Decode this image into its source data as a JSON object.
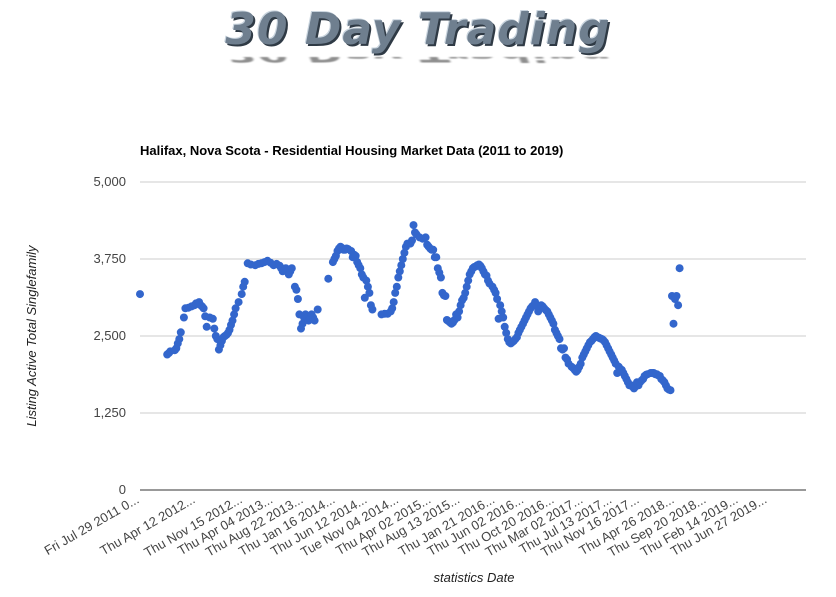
{
  "logo": {
    "text": "30 Day Trading"
  },
  "colors": {
    "point": "#3366cc",
    "grid": "#cccccc",
    "axis": "#333333"
  },
  "chart_data": {
    "type": "scatter",
    "title": "Halifax, Nova Scota - Residential Housing Market Data (2011 to 2019)",
    "xlabel": "statistics Date",
    "ylabel": "Listing Active Total Singlefamily",
    "ylim": [
      0,
      5000
    ],
    "y_ticks": [
      "0",
      "1,250",
      "2,500",
      "3,750",
      "5,000"
    ],
    "y_tick_values": [
      0,
      1250,
      2500,
      3750,
      5000
    ],
    "x_range": [
      "2011-07-29",
      "2019-12-20"
    ],
    "x_tick_labels": [
      {
        "date": "2011-07-29",
        "label": "Fri Jul 29 2011 0..."
      },
      {
        "date": "2012-04-12",
        "label": "Thu Apr 12 2012..."
      },
      {
        "date": "2012-11-15",
        "label": "Thu Nov 15 2012..."
      },
      {
        "date": "2013-04-04",
        "label": "Thu Apr 04 2013..."
      },
      {
        "date": "2013-08-22",
        "label": "Thu Aug 22 2013..."
      },
      {
        "date": "2014-01-16",
        "label": "Thu Jan 16 2014..."
      },
      {
        "date": "2014-06-12",
        "label": "Thu Jun 12 2014..."
      },
      {
        "date": "2014-11-04",
        "label": "Tue Nov 04 2014..."
      },
      {
        "date": "2015-04-02",
        "label": "Thu Apr 02 2015..."
      },
      {
        "date": "2015-08-13",
        "label": "Thu Aug 13 2015..."
      },
      {
        "date": "2016-01-21",
        "label": "Thu Jan 21 2016..."
      },
      {
        "date": "2016-06-02",
        "label": "Thu Jun 02 2016..."
      },
      {
        "date": "2016-10-20",
        "label": "Thu Oct 20 2016..."
      },
      {
        "date": "2017-03-02",
        "label": "Thu Mar 02 2017..."
      },
      {
        "date": "2017-07-13",
        "label": "Thu Jul 13 2017..."
      },
      {
        "date": "2017-11-16",
        "label": "Thu Nov 16 2017..."
      },
      {
        "date": "2018-04-26",
        "label": "Thu Apr 26 2018..."
      },
      {
        "date": "2018-09-20",
        "label": "Thu Sep 20 2018..."
      },
      {
        "date": "2019-02-14",
        "label": "Thu Feb 14 2019..."
      },
      {
        "date": "2019-06-27",
        "label": "Thu Jun 27 2019..."
      }
    ],
    "grid": true,
    "legend": "none",
    "points": [
      [
        "2011-07-29",
        3180
      ],
      [
        "2011-12-01",
        2200
      ],
      [
        "2011-12-08",
        2220
      ],
      [
        "2011-12-15",
        2250
      ],
      [
        "2012-01-05",
        2270
      ],
      [
        "2012-01-12",
        2300
      ],
      [
        "2012-01-19",
        2380
      ],
      [
        "2012-01-26",
        2450
      ],
      [
        "2012-02-02",
        2560
      ],
      [
        "2012-02-16",
        2800
      ],
      [
        "2012-02-23",
        2950
      ],
      [
        "2012-03-08",
        2960
      ],
      [
        "2012-03-22",
        2980
      ],
      [
        "2012-04-05",
        3000
      ],
      [
        "2012-04-12",
        3030
      ],
      [
        "2012-04-26",
        3050
      ],
      [
        "2012-05-03",
        3000
      ],
      [
        "2012-05-10",
        2980
      ],
      [
        "2012-05-17",
        2950
      ],
      [
        "2012-05-24",
        2820
      ],
      [
        "2012-05-31",
        2650
      ],
      [
        "2012-06-14",
        2800
      ],
      [
        "2012-06-28",
        2780
      ],
      [
        "2012-07-05",
        2620
      ],
      [
        "2012-07-12",
        2500
      ],
      [
        "2012-07-19",
        2450
      ],
      [
        "2012-07-26",
        2280
      ],
      [
        "2012-08-02",
        2350
      ],
      [
        "2012-08-09",
        2420
      ],
      [
        "2012-08-16",
        2480
      ],
      [
        "2012-08-23",
        2500
      ],
      [
        "2012-08-30",
        2520
      ],
      [
        "2012-09-06",
        2550
      ],
      [
        "2012-09-13",
        2600
      ],
      [
        "2012-09-20",
        2680
      ],
      [
        "2012-09-27",
        2750
      ],
      [
        "2012-10-04",
        2850
      ],
      [
        "2012-10-11",
        2950
      ],
      [
        "2012-10-25",
        3050
      ],
      [
        "2012-11-08",
        3180
      ],
      [
        "2012-11-15",
        3300
      ],
      [
        "2012-11-22",
        3380
      ],
      [
        "2012-12-06",
        3680
      ],
      [
        "2012-12-20",
        3660
      ],
      [
        "2013-01-10",
        3650
      ],
      [
        "2013-01-24",
        3670
      ],
      [
        "2013-02-07",
        3680
      ],
      [
        "2013-02-21",
        3700
      ],
      [
        "2013-03-07",
        3720
      ],
      [
        "2013-03-21",
        3690
      ],
      [
        "2013-04-04",
        3650
      ],
      [
        "2013-04-18",
        3670
      ],
      [
        "2013-05-02",
        3640
      ],
      [
        "2013-05-09",
        3600
      ],
      [
        "2013-05-16",
        3550
      ],
      [
        "2013-05-23",
        3560
      ],
      [
        "2013-05-30",
        3600
      ],
      [
        "2013-06-06",
        3550
      ],
      [
        "2013-06-13",
        3500
      ],
      [
        "2013-06-20",
        3550
      ],
      [
        "2013-06-27",
        3600
      ],
      [
        "2013-07-11",
        3300
      ],
      [
        "2013-07-18",
        3250
      ],
      [
        "2013-07-25",
        3100
      ],
      [
        "2013-08-01",
        2850
      ],
      [
        "2013-08-08",
        2620
      ],
      [
        "2013-08-15",
        2700
      ],
      [
        "2013-08-22",
        2800
      ],
      [
        "2013-08-29",
        2850
      ],
      [
        "2013-09-05",
        2800
      ],
      [
        "2013-09-12",
        2750
      ],
      [
        "2013-09-19",
        2780
      ],
      [
        "2013-09-26",
        2850
      ],
      [
        "2013-10-03",
        2800
      ],
      [
        "2013-10-10",
        2750
      ],
      [
        "2013-10-24",
        2930
      ],
      [
        "2013-12-12",
        3430
      ],
      [
        "2014-01-02",
        3700
      ],
      [
        "2014-01-09",
        3750
      ],
      [
        "2014-01-16",
        3800
      ],
      [
        "2014-01-23",
        3880
      ],
      [
        "2014-01-30",
        3920
      ],
      [
        "2014-02-06",
        3950
      ],
      [
        "2014-02-13",
        3930
      ],
      [
        "2014-02-20",
        3900
      ],
      [
        "2014-02-27",
        3900
      ],
      [
        "2014-03-06",
        3920
      ],
      [
        "2014-03-13",
        3910
      ],
      [
        "2014-03-27",
        3880
      ],
      [
        "2014-04-03",
        3780
      ],
      [
        "2014-04-10",
        3820
      ],
      [
        "2014-04-17",
        3800
      ],
      [
        "2014-04-24",
        3700
      ],
      [
        "2014-05-01",
        3650
      ],
      [
        "2014-05-08",
        3600
      ],
      [
        "2014-05-15",
        3500
      ],
      [
        "2014-05-22",
        3450
      ],
      [
        "2014-05-29",
        3120
      ],
      [
        "2014-06-05",
        3400
      ],
      [
        "2014-06-12",
        3300
      ],
      [
        "2014-06-19",
        3200
      ],
      [
        "2014-06-26",
        3000
      ],
      [
        "2014-07-03",
        2930
      ],
      [
        "2014-08-14",
        2850
      ],
      [
        "2014-08-28",
        2860
      ],
      [
        "2014-09-11",
        2860
      ],
      [
        "2014-09-25",
        2900
      ],
      [
        "2014-10-02",
        2950
      ],
      [
        "2014-10-09",
        3050
      ],
      [
        "2014-10-16",
        3200
      ],
      [
        "2014-10-23",
        3300
      ],
      [
        "2014-10-30",
        3450
      ],
      [
        "2014-11-06",
        3550
      ],
      [
        "2014-11-13",
        3650
      ],
      [
        "2014-11-20",
        3750
      ],
      [
        "2014-11-27",
        3850
      ],
      [
        "2014-12-04",
        3950
      ],
      [
        "2014-12-11",
        4000
      ],
      [
        "2014-12-25",
        4000
      ],
      [
        "2015-01-01",
        4050
      ],
      [
        "2015-01-08",
        4300
      ],
      [
        "2015-01-15",
        4180
      ],
      [
        "2015-01-22",
        4150
      ],
      [
        "2015-02-05",
        4100
      ],
      [
        "2015-02-19",
        4080
      ],
      [
        "2015-03-05",
        4100
      ],
      [
        "2015-03-12",
        3980
      ],
      [
        "2015-03-19",
        3950
      ],
      [
        "2015-03-26",
        3920
      ],
      [
        "2015-04-02",
        3900
      ],
      [
        "2015-04-09",
        3900
      ],
      [
        "2015-04-16",
        3780
      ],
      [
        "2015-04-23",
        3780
      ],
      [
        "2015-04-30",
        3600
      ],
      [
        "2015-05-07",
        3530
      ],
      [
        "2015-05-14",
        3450
      ],
      [
        "2015-05-21",
        3200
      ],
      [
        "2015-05-28",
        3160
      ],
      [
        "2015-06-04",
        3150
      ],
      [
        "2015-06-11",
        2760
      ],
      [
        "2015-06-18",
        2740
      ],
      [
        "2015-06-25",
        2720
      ],
      [
        "2015-07-02",
        2700
      ],
      [
        "2015-07-09",
        2720
      ],
      [
        "2015-07-16",
        2760
      ],
      [
        "2015-07-23",
        2850
      ],
      [
        "2015-07-30",
        2800
      ],
      [
        "2015-08-06",
        2900
      ],
      [
        "2015-08-13",
        3000
      ],
      [
        "2015-08-20",
        3080
      ],
      [
        "2015-08-27",
        3120
      ],
      [
        "2015-09-03",
        3200
      ],
      [
        "2015-09-10",
        3300
      ],
      [
        "2015-09-17",
        3400
      ],
      [
        "2015-09-24",
        3500
      ],
      [
        "2015-10-01",
        3550
      ],
      [
        "2015-10-08",
        3600
      ],
      [
        "2015-10-15",
        3620
      ],
      [
        "2015-10-22",
        3630
      ],
      [
        "2015-10-29",
        3650
      ],
      [
        "2015-11-05",
        3660
      ],
      [
        "2015-11-12",
        3640
      ],
      [
        "2015-11-19",
        3600
      ],
      [
        "2015-11-26",
        3550
      ],
      [
        "2015-12-03",
        3500
      ],
      [
        "2015-12-10",
        3480
      ],
      [
        "2015-12-17",
        3400
      ],
      [
        "2015-12-24",
        3350
      ],
      [
        "2016-01-07",
        3300
      ],
      [
        "2016-01-14",
        3250
      ],
      [
        "2016-01-21",
        3200
      ],
      [
        "2016-01-28",
        3100
      ],
      [
        "2016-02-04",
        2780
      ],
      [
        "2016-02-11",
        3000
      ],
      [
        "2016-02-18",
        2900
      ],
      [
        "2016-02-25",
        2800
      ],
      [
        "2016-03-03",
        2650
      ],
      [
        "2016-03-10",
        2550
      ],
      [
        "2016-03-17",
        2450
      ],
      [
        "2016-03-24",
        2400
      ],
      [
        "2016-03-31",
        2380
      ],
      [
        "2016-04-07",
        2400
      ],
      [
        "2016-04-14",
        2420
      ],
      [
        "2016-04-21",
        2450
      ],
      [
        "2016-04-28",
        2480
      ],
      [
        "2016-05-05",
        2550
      ],
      [
        "2016-05-12",
        2600
      ],
      [
        "2016-05-19",
        2650
      ],
      [
        "2016-05-26",
        2700
      ],
      [
        "2016-06-02",
        2750
      ],
      [
        "2016-06-09",
        2800
      ],
      [
        "2016-06-16",
        2850
      ],
      [
        "2016-06-23",
        2900
      ],
      [
        "2016-06-30",
        2950
      ],
      [
        "2016-07-07",
        2980
      ],
      [
        "2016-07-14",
        3000
      ],
      [
        "2016-07-21",
        3050
      ],
      [
        "2016-07-28",
        3000
      ],
      [
        "2016-08-04",
        2900
      ],
      [
        "2016-08-11",
        2950
      ],
      [
        "2016-08-18",
        3000
      ],
      [
        "2016-08-25",
        2980
      ],
      [
        "2016-09-01",
        2950
      ],
      [
        "2016-09-08",
        2920
      ],
      [
        "2016-09-15",
        2900
      ],
      [
        "2016-09-22",
        2850
      ],
      [
        "2016-09-29",
        2800
      ],
      [
        "2016-10-06",
        2750
      ],
      [
        "2016-10-13",
        2700
      ],
      [
        "2016-10-20",
        2600
      ],
      [
        "2016-10-27",
        2550
      ],
      [
        "2016-11-03",
        2500
      ],
      [
        "2016-11-10",
        2450
      ],
      [
        "2016-11-17",
        2300
      ],
      [
        "2016-11-24",
        2280
      ],
      [
        "2016-12-01",
        2300
      ],
      [
        "2016-12-08",
        2150
      ],
      [
        "2016-12-15",
        2120
      ],
      [
        "2016-12-22",
        2050
      ],
      [
        "2017-01-05",
        2000
      ],
      [
        "2017-01-12",
        1980
      ],
      [
        "2017-01-19",
        1950
      ],
      [
        "2017-01-26",
        1920
      ],
      [
        "2017-02-02",
        1950
      ],
      [
        "2017-02-09",
        2000
      ],
      [
        "2017-02-16",
        2050
      ],
      [
        "2017-02-23",
        2150
      ],
      [
        "2017-03-02",
        2200
      ],
      [
        "2017-03-09",
        2250
      ],
      [
        "2017-03-16",
        2300
      ],
      [
        "2017-03-23",
        2350
      ],
      [
        "2017-03-30",
        2400
      ],
      [
        "2017-04-06",
        2420
      ],
      [
        "2017-04-13",
        2450
      ],
      [
        "2017-04-20",
        2480
      ],
      [
        "2017-04-27",
        2500
      ],
      [
        "2017-05-04",
        2480
      ],
      [
        "2017-05-11",
        2470
      ],
      [
        "2017-05-18",
        2460
      ],
      [
        "2017-05-25",
        2450
      ],
      [
        "2017-06-01",
        2430
      ],
      [
        "2017-06-08",
        2400
      ],
      [
        "2017-06-15",
        2350
      ],
      [
        "2017-06-22",
        2300
      ],
      [
        "2017-06-29",
        2250
      ],
      [
        "2017-07-06",
        2200
      ],
      [
        "2017-07-13",
        2150
      ],
      [
        "2017-07-20",
        2100
      ],
      [
        "2017-07-27",
        2050
      ],
      [
        "2017-08-03",
        1900
      ],
      [
        "2017-08-10",
        2000
      ],
      [
        "2017-08-17",
        1950
      ],
      [
        "2017-08-24",
        1950
      ],
      [
        "2017-08-31",
        1900
      ],
      [
        "2017-09-07",
        1850
      ],
      [
        "2017-09-14",
        1800
      ],
      [
        "2017-09-21",
        1750
      ],
      [
        "2017-09-28",
        1700
      ],
      [
        "2017-10-05",
        1700
      ],
      [
        "2017-10-12",
        1680
      ],
      [
        "2017-10-19",
        1650
      ],
      [
        "2017-10-26",
        1680
      ],
      [
        "2017-11-02",
        1750
      ],
      [
        "2017-11-09",
        1700
      ],
      [
        "2017-11-16",
        1750
      ],
      [
        "2017-11-23",
        1780
      ],
      [
        "2017-11-30",
        1800
      ],
      [
        "2017-12-07",
        1850
      ],
      [
        "2017-12-14",
        1870
      ],
      [
        "2017-12-21",
        1880
      ],
      [
        "2018-01-04",
        1900
      ],
      [
        "2018-01-11",
        1900
      ],
      [
        "2018-01-18",
        1900
      ],
      [
        "2018-01-25",
        1880
      ],
      [
        "2018-02-01",
        1880
      ],
      [
        "2018-02-08",
        1860
      ],
      [
        "2018-02-15",
        1850
      ],
      [
        "2018-02-22",
        1800
      ],
      [
        "2018-03-01",
        1780
      ],
      [
        "2018-03-08",
        1750
      ],
      [
        "2018-03-15",
        1700
      ],
      [
        "2018-03-22",
        1650
      ],
      [
        "2018-03-29",
        1630
      ],
      [
        "2018-04-05",
        1620
      ],
      [
        "2018-04-12",
        3150
      ],
      [
        "2018-04-19",
        2700
      ],
      [
        "2018-04-26",
        3100
      ],
      [
        "2018-05-03",
        3150
      ],
      [
        "2018-05-10",
        3000
      ],
      [
        "2018-05-17",
        3600
      ]
    ]
  }
}
